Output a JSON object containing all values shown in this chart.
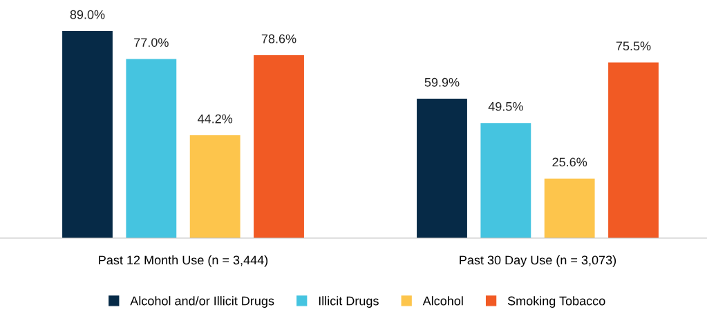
{
  "chart_data": {
    "type": "bar",
    "categories": [
      "Past 12 Month Use (n = 3,444)",
      "Past 30 Day Use (n = 3,073)"
    ],
    "series": [
      {
        "name": "Alcohol and/or Illicit Drugs",
        "color": "#062a47",
        "values": [
          89.0,
          59.9
        ],
        "value_labels": [
          "89.0%",
          "59.9%"
        ]
      },
      {
        "name": "Illicit Drugs",
        "color": "#45c4e0",
        "values": [
          77.0,
          49.5
        ],
        "value_labels": [
          "77.0%",
          "49.5%"
        ]
      },
      {
        "name": "Alcohol",
        "color": "#fdc54c",
        "values": [
          44.2,
          25.6
        ],
        "value_labels": [
          "44.2%",
          "25.6%"
        ]
      },
      {
        "name": "Smoking Tobacco",
        "color": "#f15a24",
        "values": [
          78.6,
          75.5
        ],
        "value_labels": [
          "78.6%",
          "75.5%"
        ]
      }
    ],
    "legend": "bottom",
    "tick_labels": "x"
  }
}
